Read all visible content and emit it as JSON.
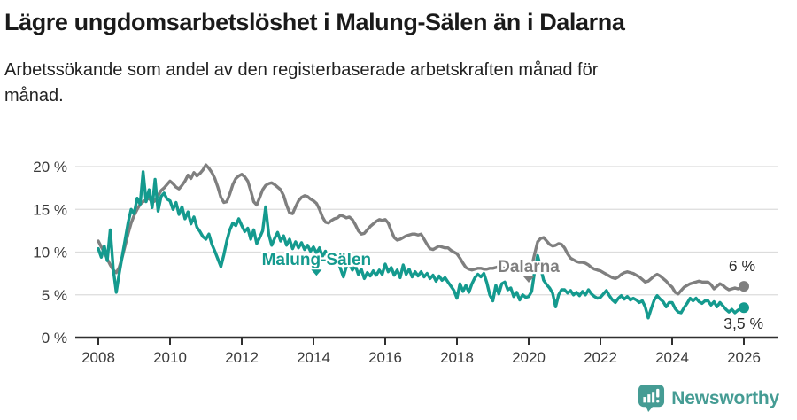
{
  "header": {
    "title": "Lägre ungdomsarbetslöshet i Malung-Sälen än i Dalarna",
    "subtitle": "Arbetssökande som andel av den registerbaserade arbetskraften månad för månad."
  },
  "footer": {
    "brand": "Newsworthy",
    "brand_color": "#459c94"
  },
  "chart_data": {
    "type": "line",
    "title": "Lägre ungdomsarbetslöshet i Malung-Sälen än i Dalarna",
    "xlabel": "",
    "ylabel": "Arbetssökande som andel av den registerbaserade arbetskraften",
    "frequency": "monthly",
    "start": "2008-01",
    "end": "2026-01",
    "ylim": [
      0,
      20.5
    ],
    "grid": true,
    "legend_position": "inline-labels",
    "y_ticks": [
      {
        "v": 0,
        "label": "0 %"
      },
      {
        "v": 5,
        "label": "5 %"
      },
      {
        "v": 10,
        "label": "10 %"
      },
      {
        "v": 15,
        "label": "15 %"
      },
      {
        "v": 20,
        "label": "20 %"
      }
    ],
    "x_ticks": [
      {
        "m": 0,
        "label": "2008"
      },
      {
        "m": 24,
        "label": "2010"
      },
      {
        "m": 48,
        "label": "2012"
      },
      {
        "m": 72,
        "label": "2014"
      },
      {
        "m": 96,
        "label": "2016"
      },
      {
        "m": 120,
        "label": "2018"
      },
      {
        "m": 144,
        "label": "2020"
      },
      {
        "m": 168,
        "label": "2022"
      },
      {
        "m": 192,
        "label": "2024"
      },
      {
        "m": 216,
        "label": "2026"
      }
    ],
    "series": [
      {
        "name": "Dalarna",
        "color": "#7f7f7f",
        "end_label": "6 %",
        "label_anchor": {
          "m": 144,
          "v": 8.4
        },
        "values": [
          11.3,
          10.6,
          10.0,
          9.2,
          8.5,
          7.9,
          7.6,
          8.2,
          9.4,
          10.8,
          12.2,
          13.4,
          14.3,
          15.0,
          15.6,
          15.9,
          16.1,
          16.3,
          15.8,
          16.0,
          16.6,
          17.2,
          17.5,
          17.9,
          18.3,
          18.0,
          17.6,
          17.4,
          17.8,
          18.3,
          19.0,
          18.6,
          19.3,
          18.9,
          19.2,
          19.6,
          20.2,
          19.8,
          19.3,
          18.6,
          17.6,
          16.4,
          15.8,
          15.9,
          16.8,
          17.9,
          18.6,
          18.9,
          19.1,
          18.8,
          18.3,
          17.2,
          15.9,
          15.5,
          16.4,
          17.3,
          17.8,
          18.0,
          18.1,
          17.9,
          17.6,
          17.3,
          16.6,
          15.5,
          14.6,
          14.5,
          15.3,
          16.0,
          16.4,
          16.6,
          16.5,
          16.2,
          16.0,
          15.7,
          15.0,
          14.1,
          13.5,
          13.4,
          13.7,
          13.9,
          14.0,
          14.3,
          14.2,
          14.0,
          14.1,
          13.8,
          13.2,
          12.5,
          12.1,
          12.2,
          12.6,
          13.0,
          13.3,
          13.6,
          13.8,
          13.7,
          13.8,
          13.4,
          12.5,
          11.7,
          11.4,
          11.5,
          11.7,
          11.9,
          12.0,
          12.1,
          12.1,
          12.0,
          12.1,
          11.5,
          10.9,
          10.4,
          10.3,
          10.5,
          10.7,
          10.6,
          10.5,
          10.5,
          10.2,
          10.0,
          9.8,
          9.3,
          8.7,
          8.2,
          8.0,
          7.9,
          8.0,
          8.1,
          8.1,
          8.0,
          8.0,
          8.1,
          8.1,
          8.2,
          8.3,
          8.2,
          8.1,
          8.0,
          8.2,
          8.1,
          8.0,
          7.9,
          7.8,
          7.9,
          8.0,
          8.3,
          9.8,
          11.2,
          11.6,
          11.7,
          11.3,
          10.9,
          10.7,
          10.8,
          11.0,
          10.9,
          10.5,
          9.8,
          9.3,
          9.1,
          8.9,
          8.8,
          8.8,
          8.7,
          8.5,
          8.2,
          8.0,
          7.9,
          7.8,
          7.6,
          7.4,
          7.2,
          7.0,
          6.9,
          7.1,
          7.4,
          7.6,
          7.7,
          7.6,
          7.5,
          7.3,
          7.1,
          6.8,
          6.5,
          6.6,
          6.9,
          7.2,
          7.4,
          7.2,
          6.9,
          6.6,
          6.2,
          5.9,
          5.3,
          5.1,
          5.5,
          5.9,
          6.1,
          6.3,
          6.4,
          6.5,
          6.6,
          6.5,
          6.5,
          6.5,
          6.2,
          5.7,
          6.0,
          6.3,
          6.1,
          5.8,
          5.6,
          5.7,
          5.8,
          5.7,
          5.8,
          6.0
        ]
      },
      {
        "name": "Malung-Sälen",
        "color": "#149a8e",
        "end_label": "3,5 %",
        "label_anchor": {
          "m": 73,
          "v": 9.2
        },
        "values": [
          10.4,
          9.4,
          10.7,
          9.0,
          12.6,
          8.0,
          5.3,
          7.5,
          9.5,
          11.5,
          13.5,
          15.0,
          14.5,
          16.3,
          15.6,
          19.4,
          15.9,
          17.3,
          15.2,
          18.5,
          14.8,
          16.5,
          16.9,
          16.2,
          16.0,
          15.0,
          15.8,
          14.4,
          15.3,
          13.9,
          14.7,
          13.3,
          14.1,
          12.9,
          12.4,
          11.8,
          11.5,
          12.1,
          10.9,
          10.1,
          9.2,
          8.3,
          9.7,
          11.3,
          12.6,
          13.4,
          13.1,
          13.9,
          13.1,
          12.4,
          12.8,
          11.5,
          12.6,
          11.0,
          11.7,
          12.5,
          15.3,
          12.1,
          10.8,
          11.6,
          12.3,
          11.3,
          11.9,
          10.8,
          11.5,
          10.4,
          11.2,
          10.5,
          11.1,
          10.3,
          10.8,
          10.1,
          10.6,
          9.9,
          10.5,
          9.5,
          10.1,
          8.9,
          9.5,
          8.6,
          9.1,
          8.1,
          7.1,
          8.3,
          8.6,
          7.9,
          8.4,
          7.4,
          8.0,
          6.9,
          7.6,
          7.2,
          7.8,
          7.3,
          7.9,
          7.4,
          8.6,
          7.7,
          8.2,
          7.3,
          7.9,
          7.0,
          8.5,
          7.4,
          8.0,
          7.1,
          7.7,
          7.2,
          7.7,
          7.1,
          7.5,
          6.9,
          7.3,
          6.6,
          7.2,
          6.7,
          7.0,
          6.5,
          6.0,
          5.5,
          4.6,
          6.3,
          5.4,
          6.1,
          5.3,
          6.3,
          7.0,
          7.4,
          7.1,
          7.5,
          6.4,
          5.0,
          4.3,
          6.1,
          5.1,
          6.3,
          6.5,
          5.6,
          5.8,
          4.8,
          5.3,
          4.4,
          5.0,
          4.7,
          4.8,
          5.4,
          7.8,
          9.6,
          8.2,
          6.7,
          6.2,
          5.8,
          5.2,
          3.6,
          5.0,
          5.6,
          5.6,
          5.2,
          5.5,
          5.0,
          5.3,
          4.9,
          5.4,
          5.0,
          5.6,
          5.1,
          4.8,
          4.6,
          4.7,
          5.1,
          5.5,
          4.9,
          4.4,
          4.1,
          4.6,
          4.9,
          4.5,
          4.8,
          4.4,
          4.6,
          4.4,
          4.1,
          4.3,
          3.6,
          2.3,
          3.4,
          4.4,
          4.9,
          4.5,
          4.2,
          3.6,
          4.1,
          4.1,
          3.4,
          3.0,
          2.9,
          3.5,
          4.0,
          4.6,
          4.3,
          4.6,
          4.2,
          4.0,
          4.3,
          4.3,
          3.8,
          4.2,
          3.6,
          4.1,
          3.7,
          3.3,
          3.0,
          3.3,
          2.9,
          3.2,
          3.4,
          3.5
        ]
      }
    ]
  }
}
